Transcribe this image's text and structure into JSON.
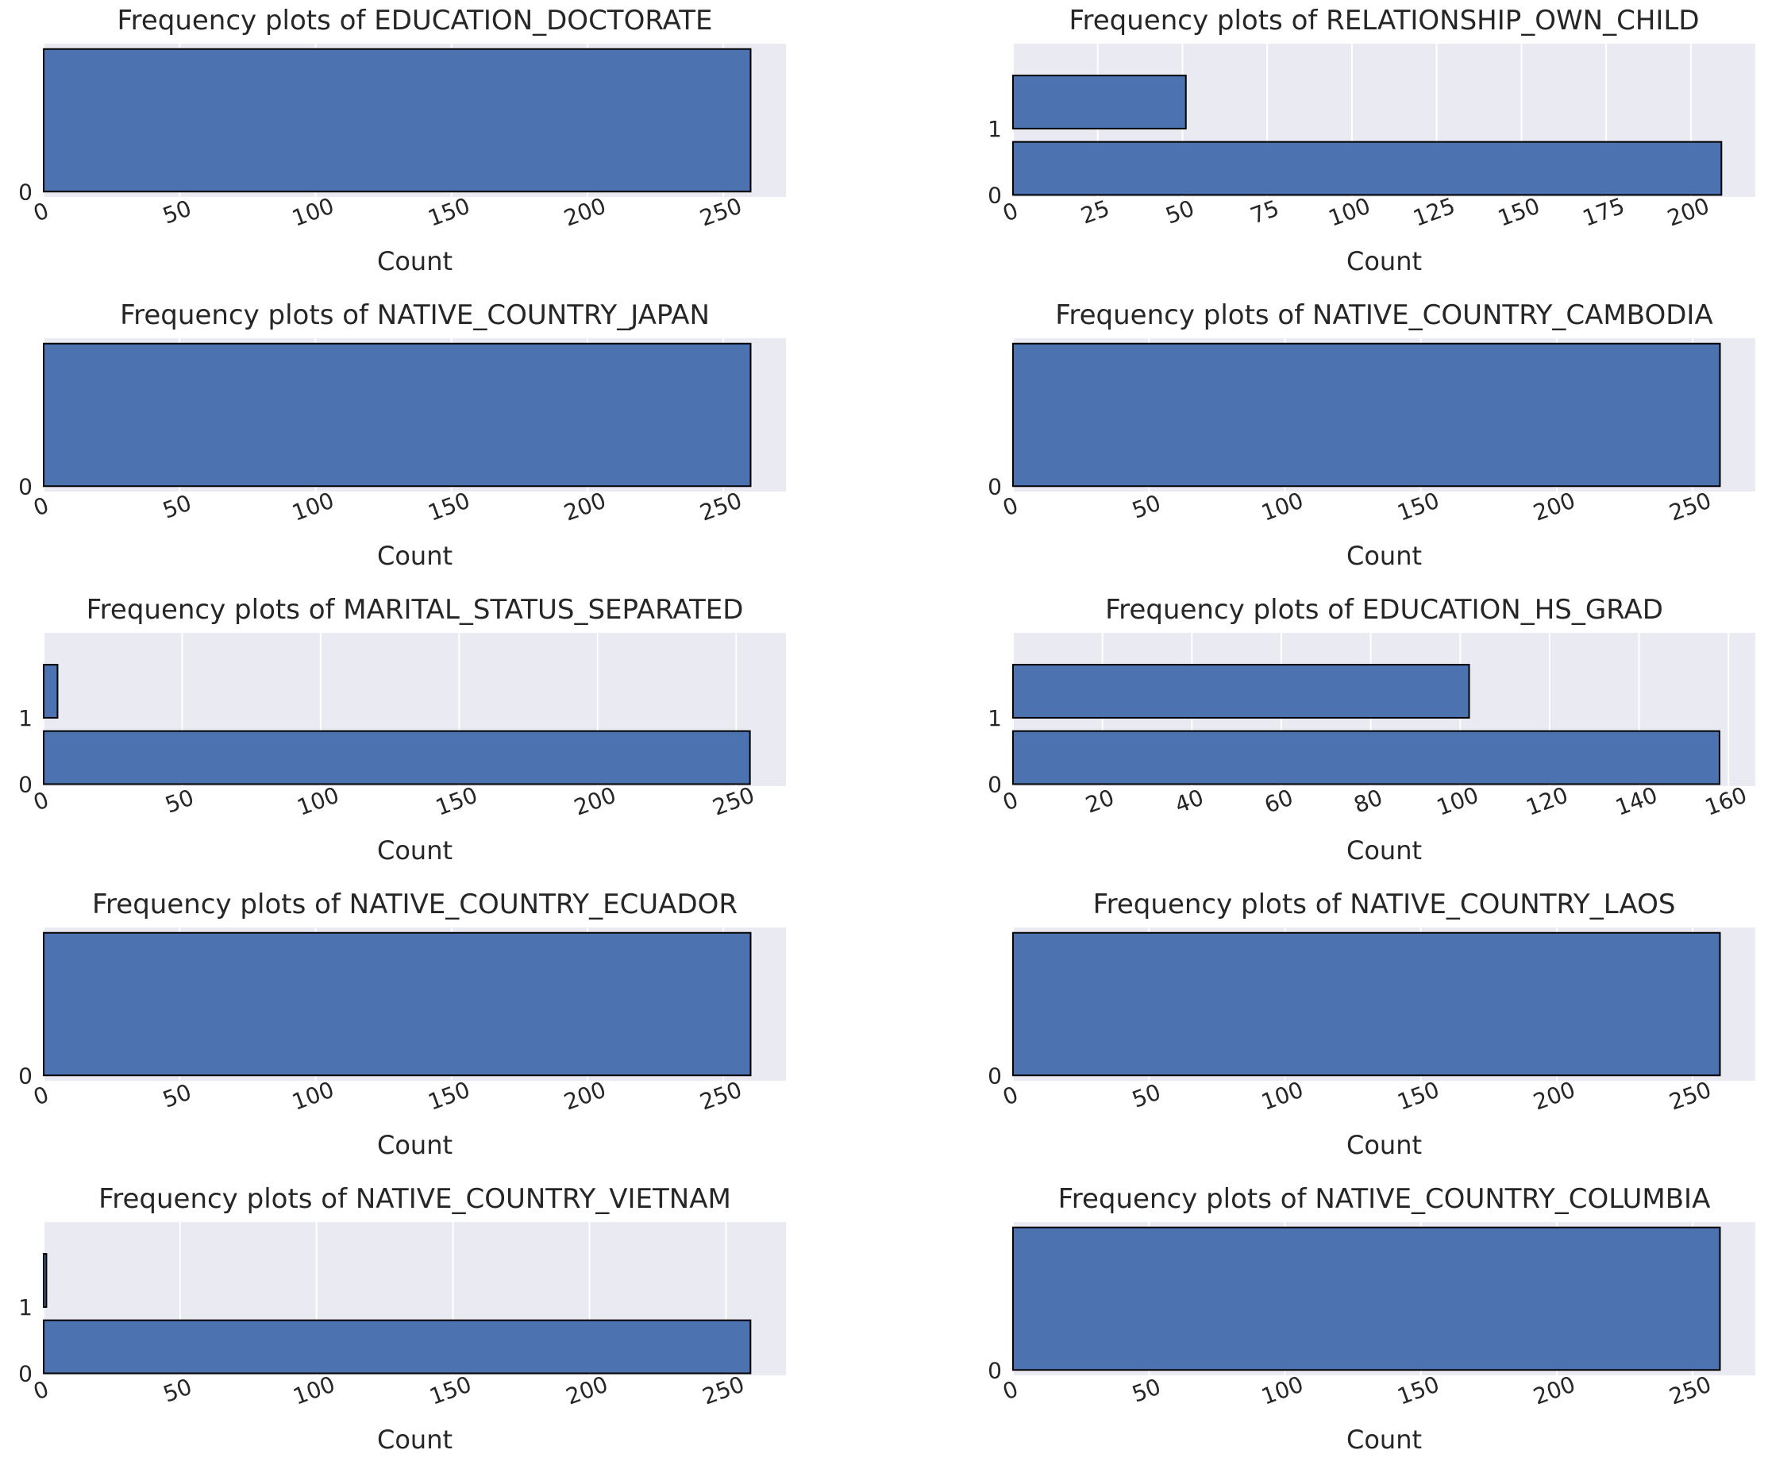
{
  "figure": {
    "colors": {
      "background": "#eaeaf2",
      "bar": "#4c72b0",
      "bar_edge": "#000000",
      "grid": "#ffffff",
      "text": "#262626"
    }
  },
  "chart_data": [
    {
      "type": "bar",
      "orientation": "horizontal",
      "title": "Frequency plots of EDUCATION_DOCTORATE",
      "categories": [
        "0"
      ],
      "values": [
        260
      ],
      "xlabel": "Count",
      "ylabel": "",
      "xlim": [
        0,
        273
      ],
      "xticks": [
        0,
        50,
        100,
        150,
        200,
        250
      ],
      "grid": true
    },
    {
      "type": "bar",
      "orientation": "horizontal",
      "title": "Frequency plots of RELATIONSHIP_OWN_CHILD",
      "categories": [
        "0",
        "1"
      ],
      "values": [
        209,
        51
      ],
      "xlabel": "Count",
      "ylabel": "",
      "xlim": [
        0,
        219
      ],
      "xticks": [
        0,
        25,
        50,
        75,
        100,
        125,
        150,
        175,
        200
      ],
      "grid": true
    },
    {
      "type": "bar",
      "orientation": "horizontal",
      "title": "Frequency plots of NATIVE_COUNTRY_JAPAN",
      "categories": [
        "0"
      ],
      "values": [
        260
      ],
      "xlabel": "Count",
      "ylabel": "",
      "xlim": [
        0,
        273
      ],
      "xticks": [
        0,
        50,
        100,
        150,
        200,
        250
      ],
      "grid": true
    },
    {
      "type": "bar",
      "orientation": "horizontal",
      "title": "Frequency plots of NATIVE_COUNTRY_CAMBODIA",
      "categories": [
        "0"
      ],
      "values": [
        260
      ],
      "xlabel": "Count",
      "ylabel": "",
      "xlim": [
        0,
        273
      ],
      "xticks": [
        0,
        50,
        100,
        150,
        200,
        250
      ],
      "grid": true
    },
    {
      "type": "bar",
      "orientation": "horizontal",
      "title": "Frequency plots of MARITAL_STATUS_SEPARATED",
      "categories": [
        "0",
        "1"
      ],
      "values": [
        255,
        5
      ],
      "xlabel": "Count",
      "ylabel": "",
      "xlim": [
        0,
        268
      ],
      "xticks": [
        0,
        50,
        100,
        150,
        200,
        250
      ],
      "grid": true
    },
    {
      "type": "bar",
      "orientation": "horizontal",
      "title": "Frequency plots of EDUCATION_HS_GRAD",
      "categories": [
        "0",
        "1"
      ],
      "values": [
        158,
        102
      ],
      "xlabel": "Count",
      "ylabel": "",
      "xlim": [
        0,
        166
      ],
      "xticks": [
        0,
        20,
        40,
        60,
        80,
        100,
        120,
        140,
        160
      ],
      "grid": true
    },
    {
      "type": "bar",
      "orientation": "horizontal",
      "title": "Frequency plots of NATIVE_COUNTRY_ECUADOR",
      "categories": [
        "0"
      ],
      "values": [
        260
      ],
      "xlabel": "Count",
      "ylabel": "",
      "xlim": [
        0,
        273
      ],
      "xticks": [
        0,
        50,
        100,
        150,
        200,
        250
      ],
      "grid": true
    },
    {
      "type": "bar",
      "orientation": "horizontal",
      "title": "Frequency plots of NATIVE_COUNTRY_LAOS",
      "categories": [
        "0"
      ],
      "values": [
        260
      ],
      "xlabel": "Count",
      "ylabel": "",
      "xlim": [
        0,
        273
      ],
      "xticks": [
        0,
        50,
        100,
        150,
        200,
        250
      ],
      "grid": true
    },
    {
      "type": "bar",
      "orientation": "horizontal",
      "title": "Frequency plots of NATIVE_COUNTRY_VIETNAM",
      "categories": [
        "0",
        "1"
      ],
      "values": [
        259,
        1
      ],
      "xlabel": "Count",
      "ylabel": "",
      "xlim": [
        0,
        272
      ],
      "xticks": [
        0,
        50,
        100,
        150,
        200,
        250
      ],
      "grid": true
    },
    {
      "type": "bar",
      "orientation": "horizontal",
      "title": "Frequency plots of NATIVE_COUNTRY_COLUMBIA",
      "categories": [
        "0"
      ],
      "values": [
        260
      ],
      "xlabel": "Count",
      "ylabel": "",
      "xlim": [
        0,
        273
      ],
      "xticks": [
        0,
        50,
        100,
        150,
        200,
        250
      ],
      "grid": true
    }
  ]
}
